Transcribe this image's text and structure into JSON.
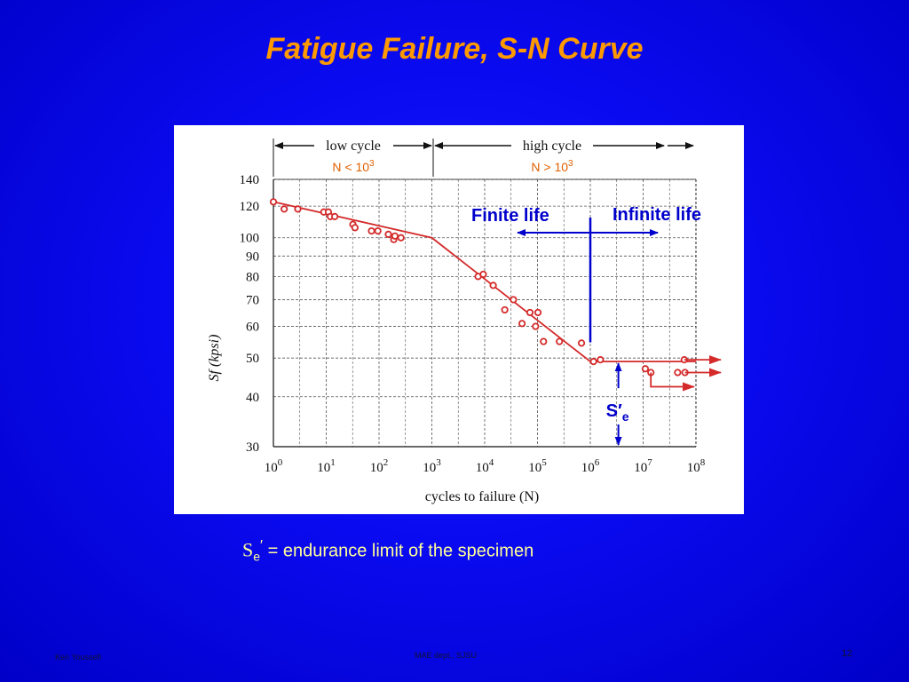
{
  "slide": {
    "title": "Fatigue Failure, S-N Curve",
    "caption_symbol": "S",
    "caption_sub": "e",
    "caption_prime": "′",
    "caption_text": " = endurance limit of the specimen",
    "footer_left": "Ken Youssefi",
    "footer_center": "MAE dept., SJSU",
    "page_number": "12"
  },
  "chart_data": {
    "type": "scatter",
    "x_scale": "log",
    "y_scale": "log",
    "xlabel": "cycles to failure (N)",
    "ylabel": "Sf (kpsi)",
    "xlim": [
      1,
      100000000
    ],
    "ylim": [
      30,
      140
    ],
    "x_ticks": [
      {
        "value": 1,
        "base": "10",
        "exp": "0"
      },
      {
        "value": 10,
        "base": "10",
        "exp": "1"
      },
      {
        "value": 100,
        "base": "10",
        "exp": "2"
      },
      {
        "value": 1000,
        "base": "10",
        "exp": "3"
      },
      {
        "value": 10000,
        "base": "10",
        "exp": "4"
      },
      {
        "value": 100000,
        "base": "10",
        "exp": "5"
      },
      {
        "value": 1000000,
        "base": "10",
        "exp": "6"
      },
      {
        "value": 10000000,
        "base": "10",
        "exp": "7"
      },
      {
        "value": 100000000,
        "base": "10",
        "exp": "8"
      }
    ],
    "y_ticks": [
      30,
      40,
      50,
      60,
      70,
      80,
      90,
      100,
      120,
      140
    ],
    "grid": true,
    "regions": [
      {
        "label": "low cycle",
        "condition": "N < 10",
        "exp": "3",
        "from": 1,
        "to": 1000
      },
      {
        "label": "high cycle",
        "condition": "N > 10",
        "exp": "3",
        "from": 1000,
        "to": 100000000
      }
    ],
    "curve": [
      {
        "x": 1,
        "y": 123
      },
      {
        "x": 1000,
        "y": 100
      },
      {
        "x": 1000000,
        "y": 49
      },
      {
        "x": 100000000,
        "y": 49
      }
    ],
    "points": [
      {
        "x": 1,
        "y": 123
      },
      {
        "x": 1.6,
        "y": 118
      },
      {
        "x": 2.9,
        "y": 118
      },
      {
        "x": 9,
        "y": 116
      },
      {
        "x": 11,
        "y": 116
      },
      {
        "x": 12,
        "y": 113
      },
      {
        "x": 14.5,
        "y": 113
      },
      {
        "x": 32,
        "y": 108
      },
      {
        "x": 35,
        "y": 106
      },
      {
        "x": 72,
        "y": 104
      },
      {
        "x": 95,
        "y": 104
      },
      {
        "x": 150,
        "y": 102
      },
      {
        "x": 190,
        "y": 99
      },
      {
        "x": 200,
        "y": 101
      },
      {
        "x": 260,
        "y": 100
      },
      {
        "x": 7500,
        "y": 80
      },
      {
        "x": 9400,
        "y": 81
      },
      {
        "x": 14500,
        "y": 76
      },
      {
        "x": 24000,
        "y": 66
      },
      {
        "x": 35000,
        "y": 70
      },
      {
        "x": 51000,
        "y": 61
      },
      {
        "x": 72000,
        "y": 65
      },
      {
        "x": 92000,
        "y": 60
      },
      {
        "x": 102000,
        "y": 65
      },
      {
        "x": 130000,
        "y": 55
      },
      {
        "x": 260000,
        "y": 55
      },
      {
        "x": 680000,
        "y": 54.5
      },
      {
        "x": 1150000,
        "y": 49
      },
      {
        "x": 1550000,
        "y": 49.5
      },
      {
        "x": 11000000,
        "y": 47
      },
      {
        "x": 14000000,
        "y": 46
      },
      {
        "x": 45000000,
        "y": 46
      },
      {
        "x": 62000000,
        "y": 46
      },
      {
        "x": 60000000,
        "y": 49.5
      }
    ],
    "runouts": [
      {
        "from_x": 60000000,
        "y": 49.5
      },
      {
        "from_x": 62000000,
        "y": 46
      },
      {
        "from_x": 14000000,
        "y": 46
      }
    ],
    "annotations": {
      "finite_life": "Finite life",
      "infinite_life": "Infinite life",
      "se_symbol": "S′",
      "se_sub": "e",
      "boundary_x": 1000000,
      "endurance_limit": 49
    },
    "colors": {
      "curve": "#d42a2a",
      "annotation": "#0000cc",
      "region_label": "#e06000",
      "grid": "#555555",
      "text": "#111111"
    }
  }
}
